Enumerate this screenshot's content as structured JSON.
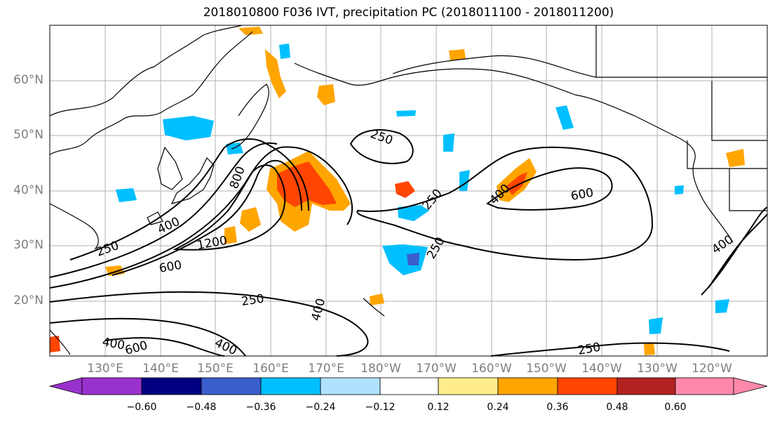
{
  "title": "2018010800 F036 IVT, precipitation PC (2018011100 - 2018011200)",
  "lat_labels": [
    "60°N",
    "50°N",
    "40°N",
    "30°N",
    "20°N"
  ],
  "lon_labels": [
    "130°E",
    "140°E",
    "150°E",
    "160°E",
    "170°E",
    "180°W",
    "170°W",
    "160°W",
    "150°W",
    "140°W",
    "130°W",
    "120°W"
  ],
  "contour_labels": [
    "250",
    "250",
    "250",
    "250",
    "250",
    "250",
    "400",
    "400",
    "400",
    "400",
    "400",
    "400",
    "600",
    "600",
    "600",
    "1200",
    "800"
  ],
  "colorbar": {
    "ticks": [
      "−0.60",
      "−0.48",
      "−0.36",
      "−0.24",
      "−0.12",
      "0.12",
      "0.24",
      "0.36",
      "0.48",
      "0.60"
    ],
    "colors": [
      "#9932cc",
      "#000080",
      "#3a5fcd",
      "#00bfff",
      "#b0e2ff",
      "#ffffff",
      "#ffec8b",
      "#ffa500",
      "#ff4500",
      "#b22222",
      "#ff88aa"
    ]
  },
  "colors": {
    "land_outline": "#000000",
    "grid": "#b0b0b0",
    "tick_label": "#7f7f7f"
  }
}
